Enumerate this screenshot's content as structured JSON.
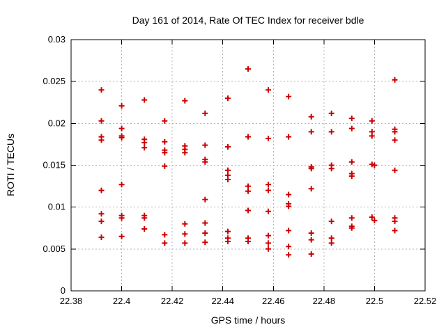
{
  "title": "Day 161 of 2014, Rate Of TEC Index for receiver bdle",
  "chart_data": {
    "type": "scatter",
    "title": "Day 161 of 2014, Rate Of TEC Index for receiver bdle",
    "xlabel": "GPS time / hours",
    "ylabel": "ROTI / TECUs",
    "xlim": [
      22.38,
      22.52
    ],
    "ylim": [
      0,
      0.03
    ],
    "xticks": [
      22.38,
      22.4,
      22.42,
      22.44,
      22.46,
      22.48,
      22.5,
      22.52
    ],
    "xtick_labels": [
      "22.38",
      "22.4",
      "22.42",
      "22.44",
      "22.46",
      "22.48",
      "22.5",
      "22.52"
    ],
    "yticks": [
      0,
      0.005,
      0.01,
      0.015,
      0.02,
      0.025,
      0.03
    ],
    "ytick_labels": [
      "0",
      "0.005",
      "0.01",
      "0.015",
      "0.02",
      "0.025",
      "0.03"
    ],
    "grid": true,
    "legend": "none",
    "marker": "plus",
    "marker_color": "#cc0000",
    "border_color": "#000000",
    "grid_color": "#b4b4b4",
    "background_color": "#ffffff",
    "series": [
      {
        "name": "ROTI",
        "points": [
          [
            22.392,
            0.024
          ],
          [
            22.392,
            0.0203
          ],
          [
            22.392,
            0.0184
          ],
          [
            22.392,
            0.018
          ],
          [
            22.392,
            0.012
          ],
          [
            22.392,
            0.0092
          ],
          [
            22.392,
            0.0083
          ],
          [
            22.392,
            0.0064
          ],
          [
            22.4,
            0.0221
          ],
          [
            22.4,
            0.0194
          ],
          [
            22.4,
            0.0185
          ],
          [
            22.4,
            0.0183
          ],
          [
            22.4,
            0.0127
          ],
          [
            22.4,
            0.009
          ],
          [
            22.4,
            0.0087
          ],
          [
            22.4,
            0.0065
          ],
          [
            22.409,
            0.0228
          ],
          [
            22.409,
            0.0181
          ],
          [
            22.409,
            0.0177
          ],
          [
            22.409,
            0.0171
          ],
          [
            22.409,
            0.009
          ],
          [
            22.409,
            0.0087
          ],
          [
            22.409,
            0.0074
          ],
          [
            22.417,
            0.0203
          ],
          [
            22.417,
            0.0178
          ],
          [
            22.417,
            0.0168
          ],
          [
            22.417,
            0.0165
          ],
          [
            22.417,
            0.0149
          ],
          [
            22.417,
            0.0067
          ],
          [
            22.417,
            0.0057
          ],
          [
            22.425,
            0.0227
          ],
          [
            22.425,
            0.0173
          ],
          [
            22.425,
            0.0169
          ],
          [
            22.425,
            0.0165
          ],
          [
            22.425,
            0.008
          ],
          [
            22.425,
            0.0068
          ],
          [
            22.425,
            0.0057
          ],
          [
            22.433,
            0.0212
          ],
          [
            22.433,
            0.0174
          ],
          [
            22.433,
            0.0157
          ],
          [
            22.433,
            0.0154
          ],
          [
            22.433,
            0.0109
          ],
          [
            22.433,
            0.0081
          ],
          [
            22.433,
            0.0069
          ],
          [
            22.433,
            0.0058
          ],
          [
            22.442,
            0.023
          ],
          [
            22.442,
            0.0172
          ],
          [
            22.442,
            0.0144
          ],
          [
            22.442,
            0.0138
          ],
          [
            22.442,
            0.0133
          ],
          [
            22.442,
            0.0071
          ],
          [
            22.442,
            0.0063
          ],
          [
            22.442,
            0.0059
          ],
          [
            22.45,
            0.0265
          ],
          [
            22.45,
            0.0184
          ],
          [
            22.45,
            0.0125
          ],
          [
            22.45,
            0.0119
          ],
          [
            22.45,
            0.0096
          ],
          [
            22.45,
            0.0063
          ],
          [
            22.45,
            0.0059
          ],
          [
            22.458,
            0.024
          ],
          [
            22.458,
            0.0182
          ],
          [
            22.458,
            0.0127
          ],
          [
            22.458,
            0.012
          ],
          [
            22.458,
            0.0095
          ],
          [
            22.458,
            0.0066
          ],
          [
            22.458,
            0.0057
          ],
          [
            22.458,
            0.005
          ],
          [
            22.466,
            0.0232
          ],
          [
            22.466,
            0.0184
          ],
          [
            22.466,
            0.0115
          ],
          [
            22.466,
            0.0104
          ],
          [
            22.466,
            0.0101
          ],
          [
            22.466,
            0.0072
          ],
          [
            22.466,
            0.0053
          ],
          [
            22.466,
            0.0043
          ],
          [
            22.475,
            0.0208
          ],
          [
            22.475,
            0.019
          ],
          [
            22.475,
            0.0148
          ],
          [
            22.475,
            0.0146
          ],
          [
            22.475,
            0.0122
          ],
          [
            22.475,
            0.0069
          ],
          [
            22.475,
            0.0061
          ],
          [
            22.475,
            0.0044
          ],
          [
            22.483,
            0.0212
          ],
          [
            22.483,
            0.019
          ],
          [
            22.483,
            0.015
          ],
          [
            22.483,
            0.0146
          ],
          [
            22.483,
            0.0083
          ],
          [
            22.483,
            0.0063
          ],
          [
            22.483,
            0.0057
          ],
          [
            22.491,
            0.0206
          ],
          [
            22.491,
            0.0194
          ],
          [
            22.491,
            0.0154
          ],
          [
            22.491,
            0.014
          ],
          [
            22.491,
            0.0137
          ],
          [
            22.491,
            0.0087
          ],
          [
            22.491,
            0.0077
          ],
          [
            22.491,
            0.0075
          ],
          [
            22.499,
            0.0203
          ],
          [
            22.499,
            0.019
          ],
          [
            22.499,
            0.0185
          ],
          [
            22.499,
            0.0151
          ],
          [
            22.5,
            0.015
          ],
          [
            22.499,
            0.0088
          ],
          [
            22.5,
            0.0084
          ],
          [
            22.508,
            0.0252
          ],
          [
            22.508,
            0.0193
          ],
          [
            22.508,
            0.019
          ],
          [
            22.508,
            0.018
          ],
          [
            22.508,
            0.0144
          ],
          [
            22.508,
            0.0087
          ],
          [
            22.508,
            0.0083
          ],
          [
            22.508,
            0.0072
          ]
        ]
      }
    ]
  }
}
